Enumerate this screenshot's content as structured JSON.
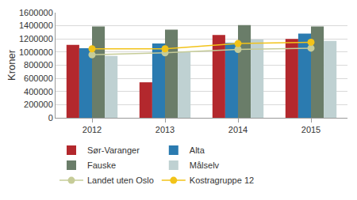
{
  "chart_data": {
    "type": "bar",
    "y_label": "Kroner",
    "categories": [
      "2012",
      "2013",
      "2014",
      "2015"
    ],
    "series": [
      {
        "name": "Sør-Varanger",
        "color": "#b3282d",
        "values": [
          1110000,
          540000,
          1260000,
          1200000
        ]
      },
      {
        "name": "Alta",
        "color": "#2b7bb0",
        "values": [
          1060000,
          1130000,
          1140000,
          1280000
        ]
      },
      {
        "name": "Fauske",
        "color": "#6a7d69",
        "values": [
          1390000,
          1340000,
          1410000,
          1390000
        ]
      },
      {
        "name": "Målselv",
        "color": "#bfd1d2",
        "values": [
          940000,
          1010000,
          1190000,
          1170000
        ]
      },
      {
        "name": "Landet uten Oslo",
        "color": "#c6cc98",
        "type": "line",
        "marker": "circle",
        "values": [
          960000,
          990000,
          1040000,
          1060000
        ]
      },
      {
        "name": "Kostragruppe 12",
        "color": "#f2c319",
        "type": "line",
        "marker": "circle",
        "values": [
          1050000,
          1050000,
          1130000,
          1150000
        ]
      }
    ],
    "ylim": [
      0,
      1600000
    ],
    "yticks": [
      0,
      200000,
      400000,
      600000,
      800000,
      1000000,
      1200000,
      1400000,
      1600000
    ],
    "grid": true,
    "legend": "bottom"
  }
}
